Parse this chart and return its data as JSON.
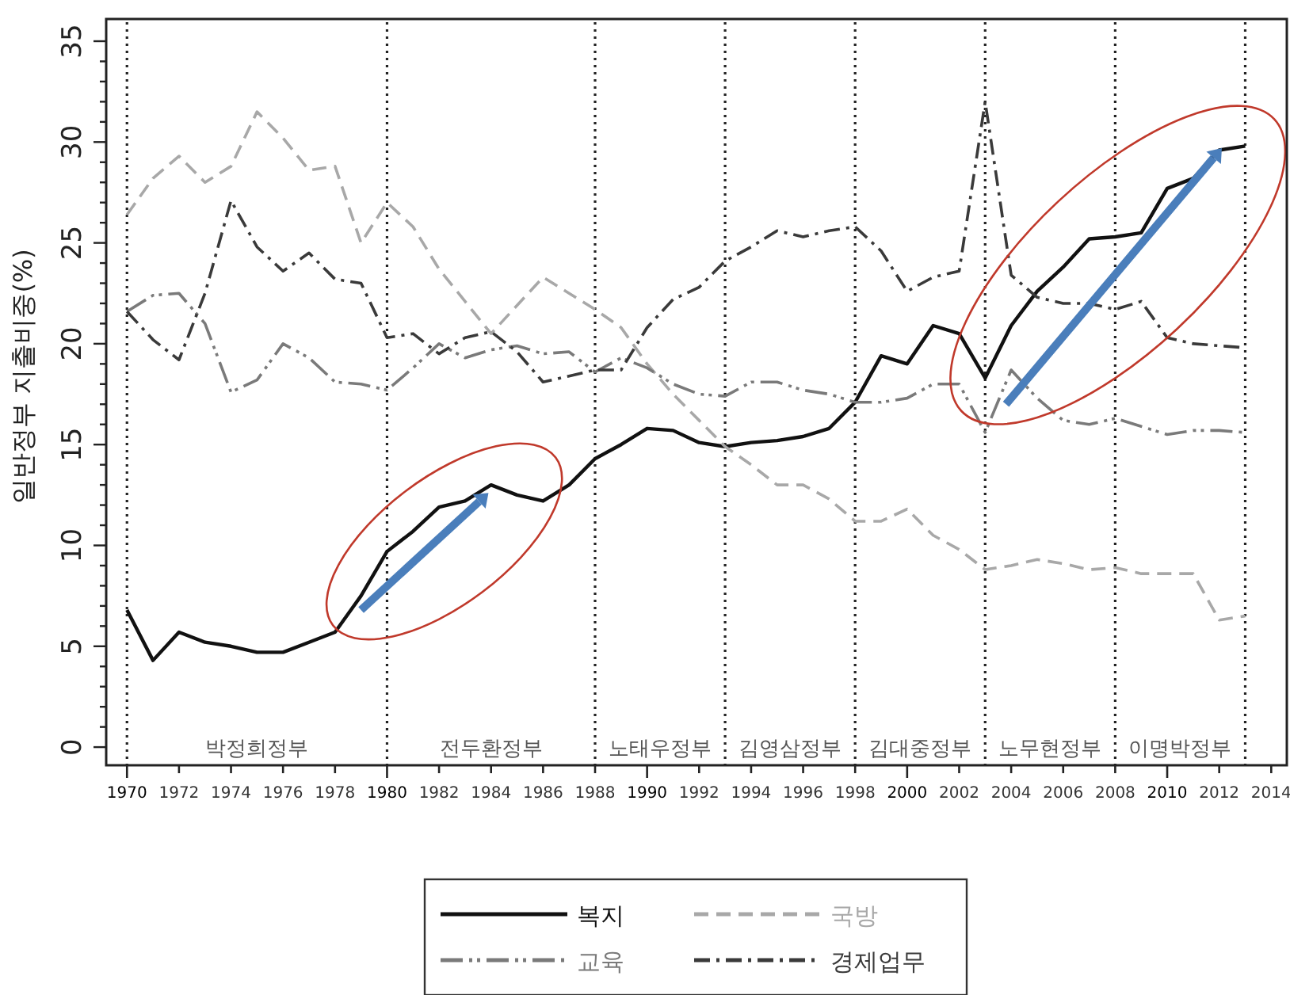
{
  "chart_data": {
    "type": "line",
    "ylabel": "일반정부 지출비중(%)",
    "x": [
      1970,
      1971,
      1972,
      1973,
      1974,
      1975,
      1976,
      1977,
      1978,
      1979,
      1980,
      1981,
      1982,
      1983,
      1984,
      1985,
      1986,
      1987,
      1988,
      1989,
      1990,
      1991,
      1992,
      1993,
      1994,
      1995,
      1996,
      1997,
      1998,
      1999,
      2000,
      2001,
      2002,
      2003,
      2004,
      2005,
      2006,
      2007,
      2008,
      2009,
      2010,
      2011,
      2012,
      2013
    ],
    "series": [
      {
        "name": "복지",
        "color": "#111111",
        "line_style": "solid",
        "values": [
          6.8,
          4.3,
          5.7,
          5.2,
          5.0,
          4.7,
          4.7,
          5.2,
          5.7,
          7.5,
          9.7,
          10.7,
          11.9,
          12.2,
          13.0,
          12.5,
          12.2,
          13.0,
          14.3,
          15.0,
          15.8,
          15.7,
          15.1,
          14.9,
          15.1,
          15.2,
          15.4,
          15.8,
          17.1,
          19.4,
          19.0,
          20.9,
          20.5,
          18.3,
          20.9,
          22.6,
          23.8,
          25.2,
          25.3,
          25.5,
          27.7,
          28.2,
          29.6,
          29.8
        ]
      },
      {
        "name": "국방",
        "color": "#a8a8a8",
        "line_style": "dashed",
        "values": [
          26.4,
          28.2,
          29.3,
          28.0,
          28.8,
          31.5,
          30.2,
          28.6,
          28.8,
          25.0,
          27.0,
          25.8,
          23.7,
          22.1,
          20.5,
          21.9,
          23.3,
          22.5,
          21.7,
          20.8,
          19.0,
          17.5,
          16.2,
          14.9,
          14.0,
          13.0,
          13.0,
          12.3,
          11.2,
          11.2,
          11.8,
          10.5,
          9.8,
          8.8,
          9.0,
          9.3,
          9.1,
          8.8,
          8.9,
          8.6,
          8.6,
          8.6,
          6.3,
          6.5
        ]
      },
      {
        "name": "교육",
        "color": "#7a7a7a",
        "line_style": "dashdotdot",
        "values": [
          21.6,
          22.4,
          22.5,
          21.0,
          17.6,
          18.2,
          20.0,
          19.3,
          18.1,
          18.0,
          17.7,
          18.8,
          20.0,
          19.3,
          19.7,
          19.9,
          19.5,
          19.6,
          18.6,
          19.3,
          18.8,
          18.0,
          17.5,
          17.4,
          18.1,
          18.1,
          17.7,
          17.5,
          17.1,
          17.1,
          17.3,
          18.0,
          18.0,
          15.6,
          18.7,
          17.3,
          16.2,
          16.0,
          16.3,
          15.9,
          15.5,
          15.7,
          15.7,
          15.6
        ]
      },
      {
        "name": "경제업무",
        "color": "#3a3a3a",
        "line_style": "dashdot",
        "values": [
          21.6,
          20.2,
          19.2,
          22.5,
          27.1,
          24.8,
          23.6,
          24.5,
          23.2,
          23.0,
          20.3,
          20.5,
          19.5,
          20.3,
          20.6,
          19.6,
          18.1,
          18.4,
          18.7,
          18.7,
          20.8,
          22.2,
          22.8,
          24.1,
          24.8,
          25.6,
          25.3,
          25.6,
          25.8,
          24.6,
          22.6,
          23.3,
          23.6,
          32.0,
          23.4,
          22.3,
          22.0,
          22.0,
          21.7,
          22.1,
          20.3,
          20.0,
          19.9,
          19.8
        ]
      }
    ],
    "xlim": [
      1969.2,
      2014.6
    ],
    "xticks": [
      1970,
      1972,
      1974,
      1976,
      1978,
      1980,
      1982,
      1984,
      1986,
      1988,
      1990,
      1992,
      1994,
      1996,
      1998,
      2000,
      2002,
      2004,
      2006,
      2008,
      2010,
      2012,
      2014
    ],
    "ylim": [
      -0.9,
      36.1
    ],
    "yticks": [
      0,
      {
        "value": 1,
        "label": null
      },
      {
        "value": 2,
        "label": null
      },
      {
        "value": 3,
        "label": null
      },
      {
        "value": 4,
        "label": null
      },
      5,
      {
        "value": 6,
        "label": null
      },
      {
        "value": 7,
        "label": null
      },
      {
        "value": 8,
        "label": null
      },
      {
        "value": 9,
        "label": null
      },
      10,
      {
        "value": 11,
        "label": null
      },
      {
        "value": 12,
        "label": null
      },
      {
        "value": 13,
        "label": null
      },
      {
        "value": 14,
        "label": null
      },
      15,
      {
        "value": 16,
        "label": null
      },
      {
        "value": 17,
        "label": null
      },
      {
        "value": 18,
        "label": null
      },
      {
        "value": 19,
        "label": null
      },
      20,
      {
        "value": 21,
        "label": null
      },
      {
        "value": 22,
        "label": null
      },
      {
        "value": 23,
        "label": null
      },
      {
        "value": 24,
        "label": null
      },
      25,
      {
        "value": 26,
        "label": null
      },
      {
        "value": 27,
        "label": null
      },
      {
        "value": 28,
        "label": null
      },
      {
        "value": 29,
        "label": null
      },
      30,
      {
        "value": 31,
        "label": null
      },
      {
        "value": 32,
        "label": null
      },
      {
        "value": 33,
        "label": null
      },
      {
        "value": 34,
        "label": null
      },
      35
    ],
    "ref_lines": [
      {
        "axis": "x",
        "value": 1970,
        "line_style": "dotted"
      },
      {
        "axis": "x",
        "value": 1980,
        "line_style": "dotted"
      },
      {
        "axis": "x",
        "value": 1988,
        "line_style": "dotted"
      },
      {
        "axis": "x",
        "value": 1993,
        "line_style": "dotted"
      },
      {
        "axis": "x",
        "value": 1998,
        "line_style": "dotted"
      },
      {
        "axis": "x",
        "value": 2003,
        "line_style": "dotted"
      },
      {
        "axis": "x",
        "value": 2008,
        "line_style": "dotted"
      },
      {
        "axis": "x",
        "value": 2013,
        "line_style": "dotted"
      }
    ],
    "annotations": [
      "박정희정부",
      "전두환정부",
      "노태우정부",
      "김영삼정부",
      "김대중정부",
      "노무현정부",
      "이명박정부"
    ],
    "legend": "bottom"
  }
}
